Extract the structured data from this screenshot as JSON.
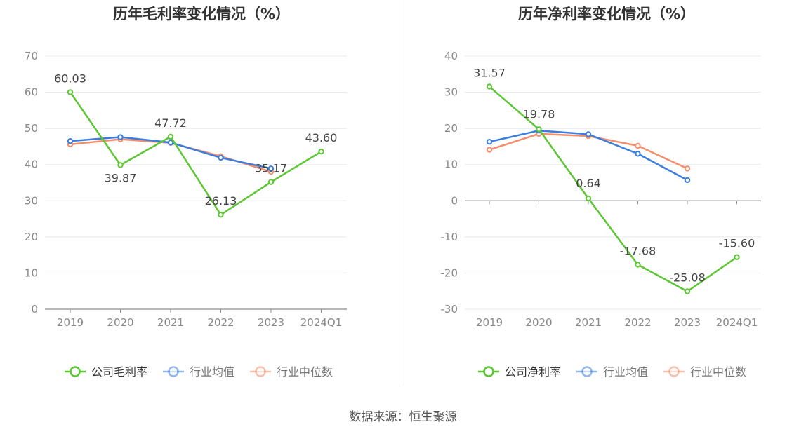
{
  "source": "数据来源：恒生聚源",
  "chart_data": [
    {
      "type": "line",
      "title": "历年毛利率变化情况（%）",
      "categories": [
        "2019",
        "2020",
        "2021",
        "2022",
        "2023",
        "2024Q1"
      ],
      "ylim": [
        0,
        70
      ],
      "yticks": [
        0,
        10,
        20,
        30,
        40,
        50,
        60,
        70
      ],
      "grid": true,
      "legend": "bottom",
      "series": [
        {
          "name": "公司毛利率",
          "color": "#5cc633",
          "values": [
            60.03,
            39.87,
            47.72,
            26.13,
            35.17,
            43.6
          ],
          "labels": [
            "60.03",
            "39.87",
            "47.72",
            "26.13",
            "35.17",
            "43.60"
          ]
        },
        {
          "name": "行业均值",
          "color": "#3a7de0",
          "values": [
            46.5,
            47.6,
            46.1,
            41.9,
            38.9,
            null
          ]
        },
        {
          "name": "行业中位数",
          "color": "#f58d6a",
          "values": [
            45.6,
            47.0,
            46.0,
            42.3,
            38.0,
            null
          ]
        }
      ]
    },
    {
      "type": "line",
      "title": "历年净利率变化情况（%）",
      "categories": [
        "2019",
        "2020",
        "2021",
        "2022",
        "2023",
        "2024Q1"
      ],
      "ylim": [
        -30,
        40
      ],
      "yticks": [
        -30,
        -20,
        -10,
        0,
        10,
        20,
        30,
        40
      ],
      "grid": true,
      "legend": "bottom",
      "series": [
        {
          "name": "公司净利率",
          "color": "#5cc633",
          "values": [
            31.57,
            19.78,
            0.64,
            -17.68,
            -25.08,
            -15.6
          ],
          "labels": [
            "31.57",
            "19.78",
            "0.64",
            "-17.68",
            "-25.08",
            "-15.60"
          ]
        },
        {
          "name": "行业均值",
          "color": "#3a7de0",
          "values": [
            16.3,
            19.4,
            18.4,
            13.0,
            5.7,
            null
          ]
        },
        {
          "name": "行业中位数",
          "color": "#f58d6a",
          "values": [
            14.1,
            18.5,
            17.9,
            15.2,
            8.9,
            null
          ]
        }
      ]
    }
  ]
}
